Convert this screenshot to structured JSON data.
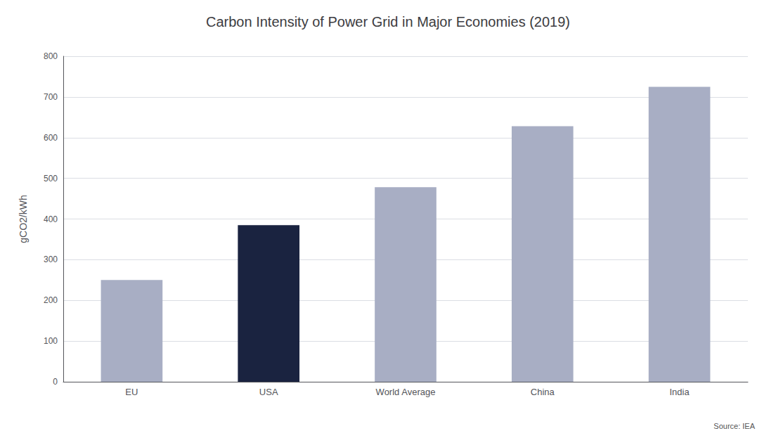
{
  "chart_data": {
    "type": "bar",
    "title": "Carbon Intensity of Power Grid in Major Economies (2019)",
    "categories": [
      "EU",
      "USA",
      "World Average",
      "China",
      "India"
    ],
    "values": [
      250,
      385,
      478,
      628,
      725
    ],
    "colors": [
      "#a8aec4",
      "#1a2340",
      "#a8aec4",
      "#a8aec4",
      "#a8aec4"
    ],
    "ylabel": "gCO2/kWh",
    "ylim": [
      0,
      800
    ],
    "yticks": [
      0,
      100,
      200,
      300,
      400,
      500,
      600,
      700,
      800
    ],
    "grid": true,
    "annotation": "Source: IEA"
  }
}
